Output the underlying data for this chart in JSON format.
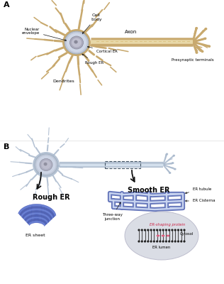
{
  "panel_A_label": "A",
  "panel_B_label": "B",
  "labels_A": {
    "cell_body": "Cell\nbody",
    "nuclear_envelope": "Nuclear\nenvelope",
    "cortical_er": "Cortical ER",
    "rough_er": "Rough ER",
    "axon": "Axon",
    "dendrites": "Dendrites",
    "presynaptic": "Presynaptic terminals"
  },
  "labels_B": {
    "rough_er": "Rough ER",
    "er_sheet": "ER sheet",
    "smooth_er": "Smooth ER",
    "er_tubule": "ER tubule",
    "three_way": "Three-way\njunction",
    "er_cisterna": "ER Cisterna",
    "er_shaping": "ER-shaping protein",
    "cytosol": "Cytosol",
    "er_lumen": "ER lumen"
  },
  "neuron_A_color": "#C8A96E",
  "neuron_B_color": "#A8B8CC",
  "er_blue": "#6677BB",
  "er_light_blue": "#9AAADE",
  "er_fill": "#8899CC",
  "er_sheet_dark": "#3344AA",
  "er_sheet_light": "#6688CC",
  "background": "#FFFFFF",
  "arrow_color": "#111111",
  "pink_protein": "#E06080",
  "lipid_dark": "#222222",
  "oval_bg": "#D8DCE4"
}
